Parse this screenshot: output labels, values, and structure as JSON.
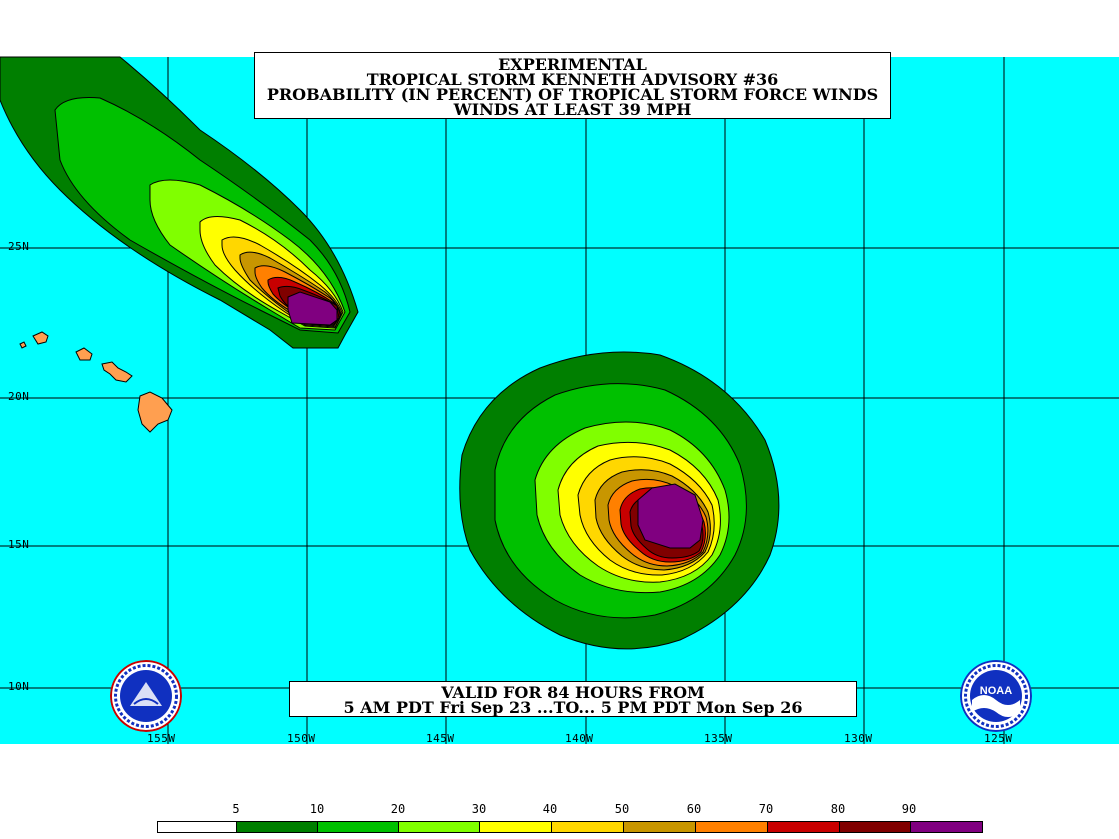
{
  "title": {
    "line1": "EXPERIMENTAL",
    "line2": "TROPICAL STORM KENNETH ADVISORY #36",
    "line3": "PROBABILITY (IN PERCENT) OF TROPICAL STORM FORCE WINDS",
    "line4": "WINDS AT LEAST 39 MPH"
  },
  "valid": {
    "line1": "VALID FOR 84 HOURS FROM",
    "line2": "5 AM PDT Fri Sep 23 ...TO... 5 PM PDT Mon Sep 26"
  },
  "latitudes": [
    "25N",
    "20N",
    "15N",
    "10N"
  ],
  "longitudes": [
    "155W",
    "150W",
    "145W",
    "140W",
    "135W",
    "130W",
    "125W"
  ],
  "legend": {
    "ticks": [
      "5",
      "10",
      "20",
      "30",
      "40",
      "50",
      "60",
      "70",
      "80",
      "90"
    ],
    "colors": [
      "#ffffff",
      "#007f00",
      "#00c000",
      "#80ff00",
      "#ffff00",
      "#ffd700",
      "#c89600",
      "#ff8000",
      "#c80000",
      "#800000",
      "#800080"
    ]
  },
  "colors": {
    "ocean": "#00ffff",
    "land": "#ff9f50",
    "grid": "#000000"
  },
  "logos": {
    "left": "nws-logo-icon",
    "right": "noaa-logo-icon",
    "right_text": "NOAA"
  }
}
